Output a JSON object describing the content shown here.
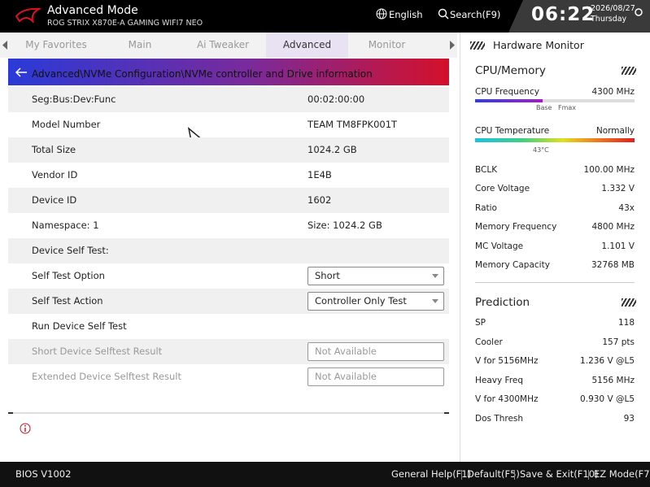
{
  "header": {
    "title": "Advanced Mode",
    "subtitle": "ROG STRIX X870E-A GAMING WIFI7 NEO",
    "language": "English",
    "search": "Search(F9)",
    "time": "06:22",
    "date": "2026/08/27",
    "day": "Thursday"
  },
  "tabs": [
    "My Favorites",
    "Main",
    "Ai Tweaker",
    "Advanced",
    "Monitor"
  ],
  "breadcrumb": "Advanced\\NVMe Configuration\\NVMe controller and Drive information",
  "rows": [
    {
      "label": "Seg:Bus:Dev:Func",
      "value": "00:02:00:00"
    },
    {
      "label": "Model Number",
      "value": "TEAM TM8FPK001T"
    },
    {
      "label": "Total Size",
      "value": "1024.2 GB"
    },
    {
      "label": "Vendor ID",
      "value": "1E4B"
    },
    {
      "label": "Device ID",
      "value": "1602"
    },
    {
      "label": "Namespace: 1",
      "value": "Size: 1024.2 GB"
    },
    {
      "label": "Device Self Test:"
    },
    {
      "label": "Self Test Option",
      "value": "Short",
      "control": "dropdown"
    },
    {
      "label": "Self Test Action",
      "value": "Controller Only Test",
      "control": "dropdown"
    },
    {
      "label": "Run Device Self Test"
    },
    {
      "label": "Short Device Selftest Result",
      "value": "Not Available",
      "control": "field",
      "disabled": true
    },
    {
      "label": "Extended Device Selftest Result",
      "value": "Not Available",
      "control": "field",
      "disabled": true
    }
  ],
  "monitor": {
    "title": "Hardware Monitor",
    "cpu_memory": {
      "title": "CPU/Memory",
      "cpu_frequency": {
        "label": "CPU Frequency",
        "value": "4300 MHz",
        "markers": [
          "Base",
          "Fmax"
        ]
      },
      "cpu_temperature": {
        "label": "CPU Temperature",
        "value": "Normally",
        "marker": "43°C"
      },
      "items": [
        {
          "label": "BCLK",
          "value": "100.00 MHz"
        },
        {
          "label": "Core Voltage",
          "value": "1.332 V"
        },
        {
          "label": "Ratio",
          "value": "43x"
        },
        {
          "label": "Memory Frequency",
          "value": "4800 MHz"
        },
        {
          "label": "MC Voltage",
          "value": "1.101 V"
        },
        {
          "label": "Memory Capacity",
          "value": "32768 MB"
        }
      ]
    },
    "prediction": {
      "title": "Prediction",
      "items": [
        {
          "label": "SP",
          "value": "118"
        },
        {
          "label": "Cooler",
          "value": "157 pts"
        },
        {
          "label": "V for 5156MHz",
          "value": "1.236 V @L5"
        },
        {
          "label": "Heavy Freq",
          "value": "5156 MHz"
        },
        {
          "label": "V for 4300MHz",
          "value": "0.930 V @L5"
        },
        {
          "label": "Dos Thresh",
          "value": "93"
        }
      ]
    }
  },
  "footer": {
    "version": "BIOS V1002",
    "actions": [
      "General Help(F1)",
      "Default(F5)",
      "Save & Exit(F10)",
      "EZ Mode(F7)"
    ]
  }
}
